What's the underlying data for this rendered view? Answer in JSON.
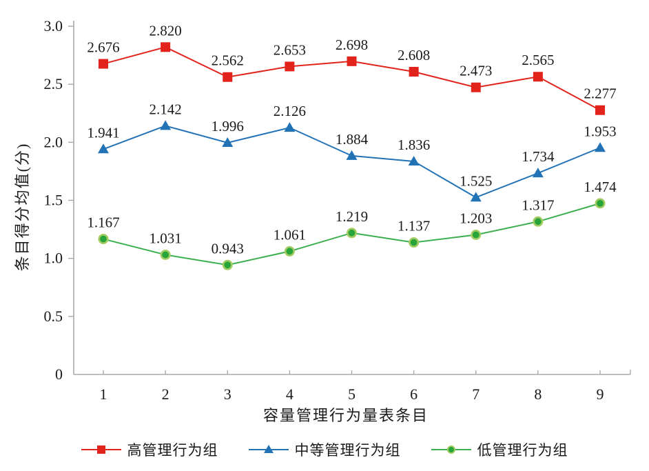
{
  "chart_data": {
    "type": "line",
    "title": "",
    "xlabel": "容量管理行为量表条目",
    "ylabel": "条目得分均值(分)",
    "categories": [
      "1",
      "2",
      "3",
      "4",
      "5",
      "6",
      "7",
      "8",
      "9"
    ],
    "ylim": [
      0,
      3.0
    ],
    "yticks": [
      "3.0",
      "2.5",
      "2.0",
      "1.5",
      "1.0",
      "0.5",
      "0"
    ],
    "grid": false,
    "legend_position": "bottom",
    "value_labels": true,
    "value_label_decimals": 3,
    "series": [
      {
        "name": "高管理行为组",
        "marker": "square",
        "color": "#e2231c",
        "marker_fill": "#e2231c",
        "marker_edge": "#e2231c",
        "values": [
          2.676,
          2.82,
          2.562,
          2.653,
          2.698,
          2.608,
          2.473,
          2.565,
          2.277
        ]
      },
      {
        "name": "中等管理行为组",
        "marker": "triangle",
        "color": "#2272b6",
        "marker_fill": "#2272b6",
        "marker_edge": "#2272b6",
        "values": [
          1.941,
          2.142,
          1.996,
          2.126,
          1.884,
          1.836,
          1.525,
          1.734,
          1.953
        ]
      },
      {
        "name": "低管理行为组",
        "marker": "circle",
        "color": "#3bae4f",
        "marker_fill": "#27a53b",
        "marker_edge": "#a2cc62",
        "values": [
          1.167,
          1.031,
          0.943,
          1.061,
          1.219,
          1.137,
          1.203,
          1.317,
          1.474
        ]
      }
    ]
  },
  "colors": {
    "axis": "#a8a8a8",
    "text": "#1a1a1a",
    "background": "#ffffff"
  }
}
